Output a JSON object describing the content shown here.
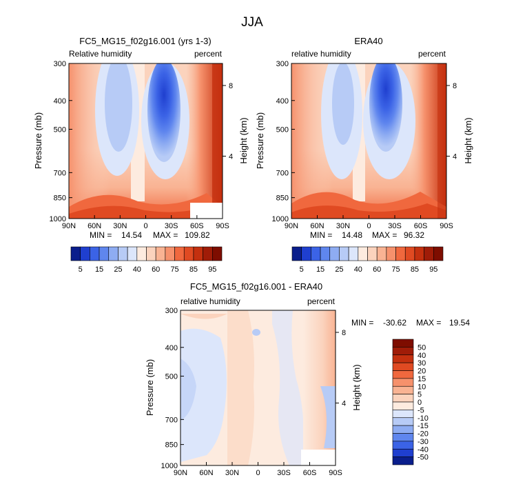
{
  "figure": {
    "title": "JJA"
  },
  "chart_data": [
    {
      "type": "heatmap",
      "id": "model",
      "title": "FC5_MG15_f02g16.001 (yrs 1-3)",
      "left_label": "Relative humidity",
      "right_label": "percent",
      "ylabel": "Pressure (mb)",
      "ylabel_right": "Height (km)",
      "x_ticks": [
        "90N",
        "60N",
        "30N",
        "0",
        "30S",
        "60S",
        "90S"
      ],
      "y_ticks": [
        "300",
        "400",
        "500",
        "700",
        "850",
        "1000"
      ],
      "height_ticks": [
        "8",
        "4"
      ],
      "min_label": "MIN =",
      "min_value": "14.54",
      "max_label": "MAX =",
      "max_value": "109.82",
      "colorbar_labels": [
        "5",
        "15",
        "25",
        "40",
        "60",
        "75",
        "85",
        "95"
      ],
      "colors": [
        "#0a1e8c",
        "#1f3fcf",
        "#3b63e6",
        "#5f86ee",
        "#8eacf2",
        "#b7cbf6",
        "#dce6fb",
        "#fdebdf",
        "#fbd3bd",
        "#f9b393",
        "#f6916c",
        "#f0683e",
        "#e04a22",
        "#c4300f",
        "#a01c08",
        "#7e0d00"
      ]
    },
    {
      "type": "heatmap",
      "id": "obs",
      "title": "ERA40",
      "left_label": "relative humidity",
      "right_label": "percent",
      "ylabel": "Pressure (mb)",
      "ylabel_right": "Height (km)",
      "x_ticks": [
        "90N",
        "60N",
        "30N",
        "0",
        "30S",
        "60S",
        "90S"
      ],
      "y_ticks": [
        "300",
        "400",
        "500",
        "700",
        "850",
        "1000"
      ],
      "height_ticks": [
        "8",
        "4"
      ],
      "min_label": "MIN =",
      "min_value": "14.48",
      "max_label": "MAX =",
      "max_value": "96.32",
      "colorbar_labels": [
        "5",
        "15",
        "25",
        "40",
        "60",
        "75",
        "85",
        "95"
      ],
      "colors": [
        "#0a1e8c",
        "#1f3fcf",
        "#3b63e6",
        "#5f86ee",
        "#8eacf2",
        "#b7cbf6",
        "#dce6fb",
        "#fdebdf",
        "#fbd3bd",
        "#f9b393",
        "#f6916c",
        "#f0683e",
        "#e04a22",
        "#c4300f",
        "#a01c08",
        "#7e0d00"
      ]
    },
    {
      "type": "heatmap",
      "id": "diff",
      "title": "FC5_MG15_f02g16.001 - ERA40",
      "left_label": "relative humidity",
      "right_label": "percent",
      "ylabel": "Pressure (mb)",
      "ylabel_right": "Height (km)",
      "x_ticks": [
        "90N",
        "60N",
        "30N",
        "0",
        "30S",
        "60S",
        "90S"
      ],
      "y_ticks": [
        "300",
        "400",
        "500",
        "700",
        "850",
        "1000"
      ],
      "height_ticks": [
        "8",
        "4"
      ],
      "min_label": "MIN =",
      "min_value": "-30.62",
      "max_label": "MAX =",
      "max_value": "19.54",
      "colorbar_labels": [
        "50",
        "40",
        "30",
        "20",
        "15",
        "10",
        "5",
        "0",
        "-5",
        "-10",
        "-15",
        "-20",
        "-30",
        "-40",
        "-50"
      ],
      "colors": [
        "#7e0d00",
        "#a01c08",
        "#c4300f",
        "#e04a22",
        "#f0683e",
        "#f6916c",
        "#f9b393",
        "#fbd3bd",
        "#fdebdf",
        "#dce6fb",
        "#b7cbf6",
        "#8eacf2",
        "#5f86ee",
        "#3b63e6",
        "#1f3fcf",
        "#0a1e8c"
      ]
    }
  ]
}
